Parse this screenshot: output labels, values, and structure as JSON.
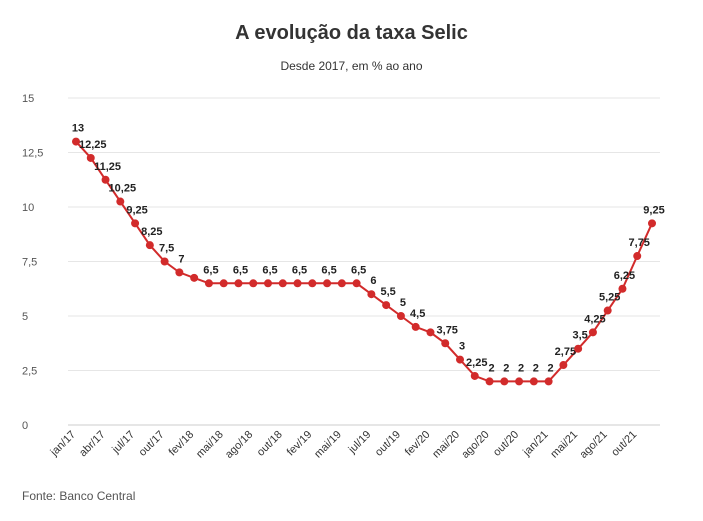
{
  "chart_data": {
    "type": "line",
    "title": "A evolução da taxa Selic",
    "subtitle": "Desde 2017, em % ao ano",
    "source": "Fonte: Banco Central",
    "xlabel": "",
    "ylabel": "",
    "ylim": [
      0,
      15
    ],
    "yticks": [
      "0",
      "2,5",
      "5",
      "7,5",
      "10",
      "12,5",
      "15"
    ],
    "ytick_values": [
      0,
      2.5,
      5,
      7.5,
      10,
      12.5,
      15
    ],
    "x_tick_labels": [
      "jan/17",
      "abr/17",
      "jul/17",
      "out/17",
      "fev/18",
      "mai/18",
      "ago/18",
      "out/18",
      "fev/19",
      "mai/19",
      "jul/19",
      "out/19",
      "fev/20",
      "mai/20",
      "ago/20",
      "out/20",
      "jan/21",
      "mai/21",
      "ago/21",
      "out/21"
    ],
    "x_tick_index": [
      0,
      2,
      4,
      6,
      8,
      10,
      12,
      14,
      16,
      18,
      20,
      22,
      24,
      26,
      28,
      30,
      32,
      34,
      36,
      38
    ],
    "grid": true,
    "line_color": "#d22b2b",
    "series": [
      {
        "values": [
          13,
          12.25,
          11.25,
          10.25,
          9.25,
          8.25,
          7.5,
          7,
          6.75,
          6.5,
          6.5,
          6.5,
          6.5,
          6.5,
          6.5,
          6.5,
          6.5,
          6.5,
          6.5,
          6.5,
          6,
          5.5,
          5,
          4.5,
          4.25,
          3.75,
          3,
          2.25,
          2,
          2,
          2,
          2,
          2,
          2.75,
          3.5,
          4.25,
          5.25,
          6.25,
          7.75,
          9.25
        ],
        "data_labels": [
          "13",
          "12,25",
          "11,25",
          "10,25",
          "9,25",
          "8,25",
          "7,5",
          "7",
          "",
          "6,5",
          "",
          "6,5",
          "",
          "6,5",
          "",
          "6,5",
          "",
          "6,5",
          "",
          "6,5",
          "6",
          "5,5",
          "5",
          "4,5",
          "",
          "3,75",
          "3",
          "2,25",
          "2",
          "2",
          "2",
          "2",
          "2",
          "2,75",
          "3,5",
          "4,25",
          "5,25",
          "6,25",
          "7,75",
          "9,25"
        ]
      }
    ]
  }
}
